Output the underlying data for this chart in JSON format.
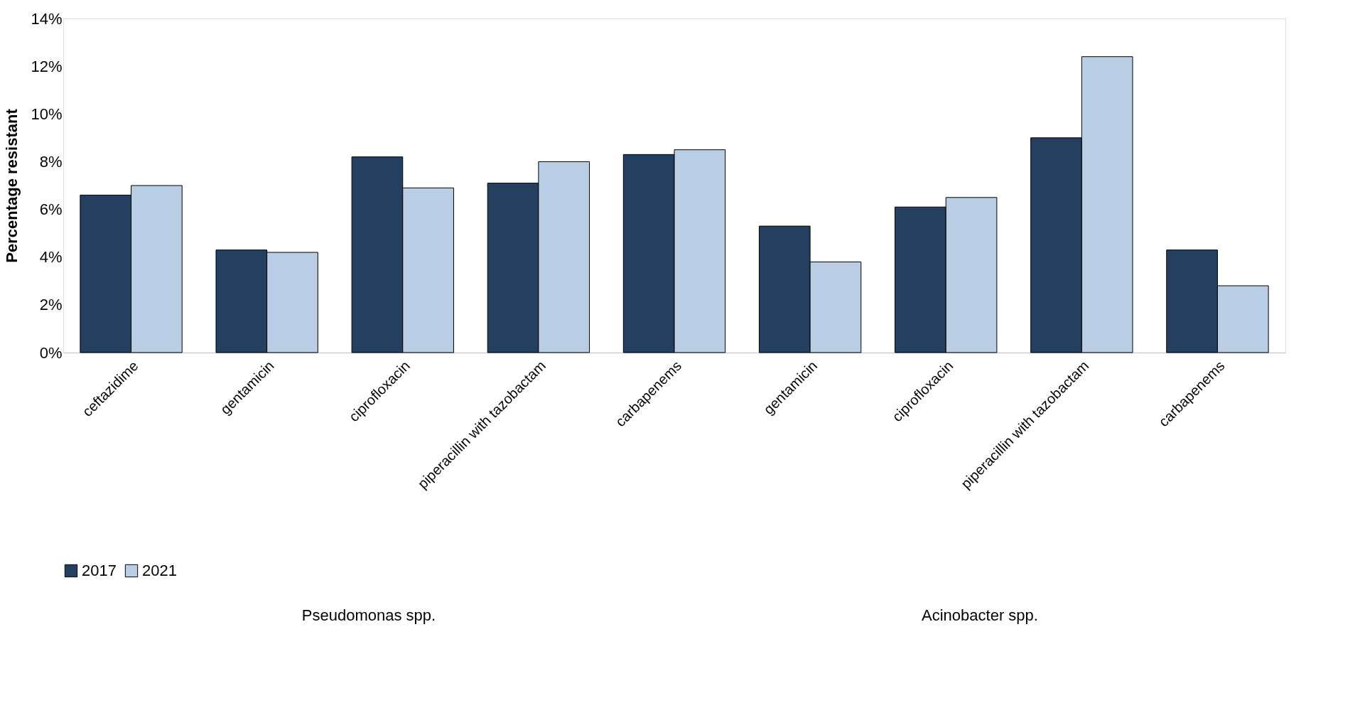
{
  "chart_data": {
    "type": "bar",
    "ylabel": "Percentage resistant",
    "categories": [
      "ceftazidime",
      "gentamicin",
      "ciprofloxacin",
      "piperacillin with tazobactam",
      "carbapenems",
      "gentamicin",
      "ciprofloxacin",
      "piperacillin with tazobactam",
      "carbapenems"
    ],
    "series": [
      {
        "name": "2017",
        "color": "#243f60",
        "values": [
          6.6,
          4.3,
          8.2,
          7.1,
          8.3,
          5.3,
          6.1,
          9.0,
          4.3
        ]
      },
      {
        "name": "2021",
        "color": "#b9cde5",
        "values": [
          7.0,
          4.2,
          6.9,
          8.0,
          8.5,
          3.8,
          6.5,
          12.4,
          2.8
        ]
      }
    ],
    "ylim": [
      0,
      14
    ],
    "yticks": [
      {
        "value": 0,
        "label": "0%"
      },
      {
        "value": 2,
        "label": "2%"
      },
      {
        "value": 4,
        "label": "4%"
      },
      {
        "value": 6,
        "label": "6%"
      },
      {
        "value": 8,
        "label": "8%"
      },
      {
        "value": 10,
        "label": "10%"
      },
      {
        "value": 12,
        "label": "12%"
      },
      {
        "value": 14,
        "label": "14%"
      }
    ],
    "annotations": [
      "Pseudomonas spp.",
      "Acinobacter spp."
    ],
    "grid": false,
    "legend": "bottom"
  }
}
